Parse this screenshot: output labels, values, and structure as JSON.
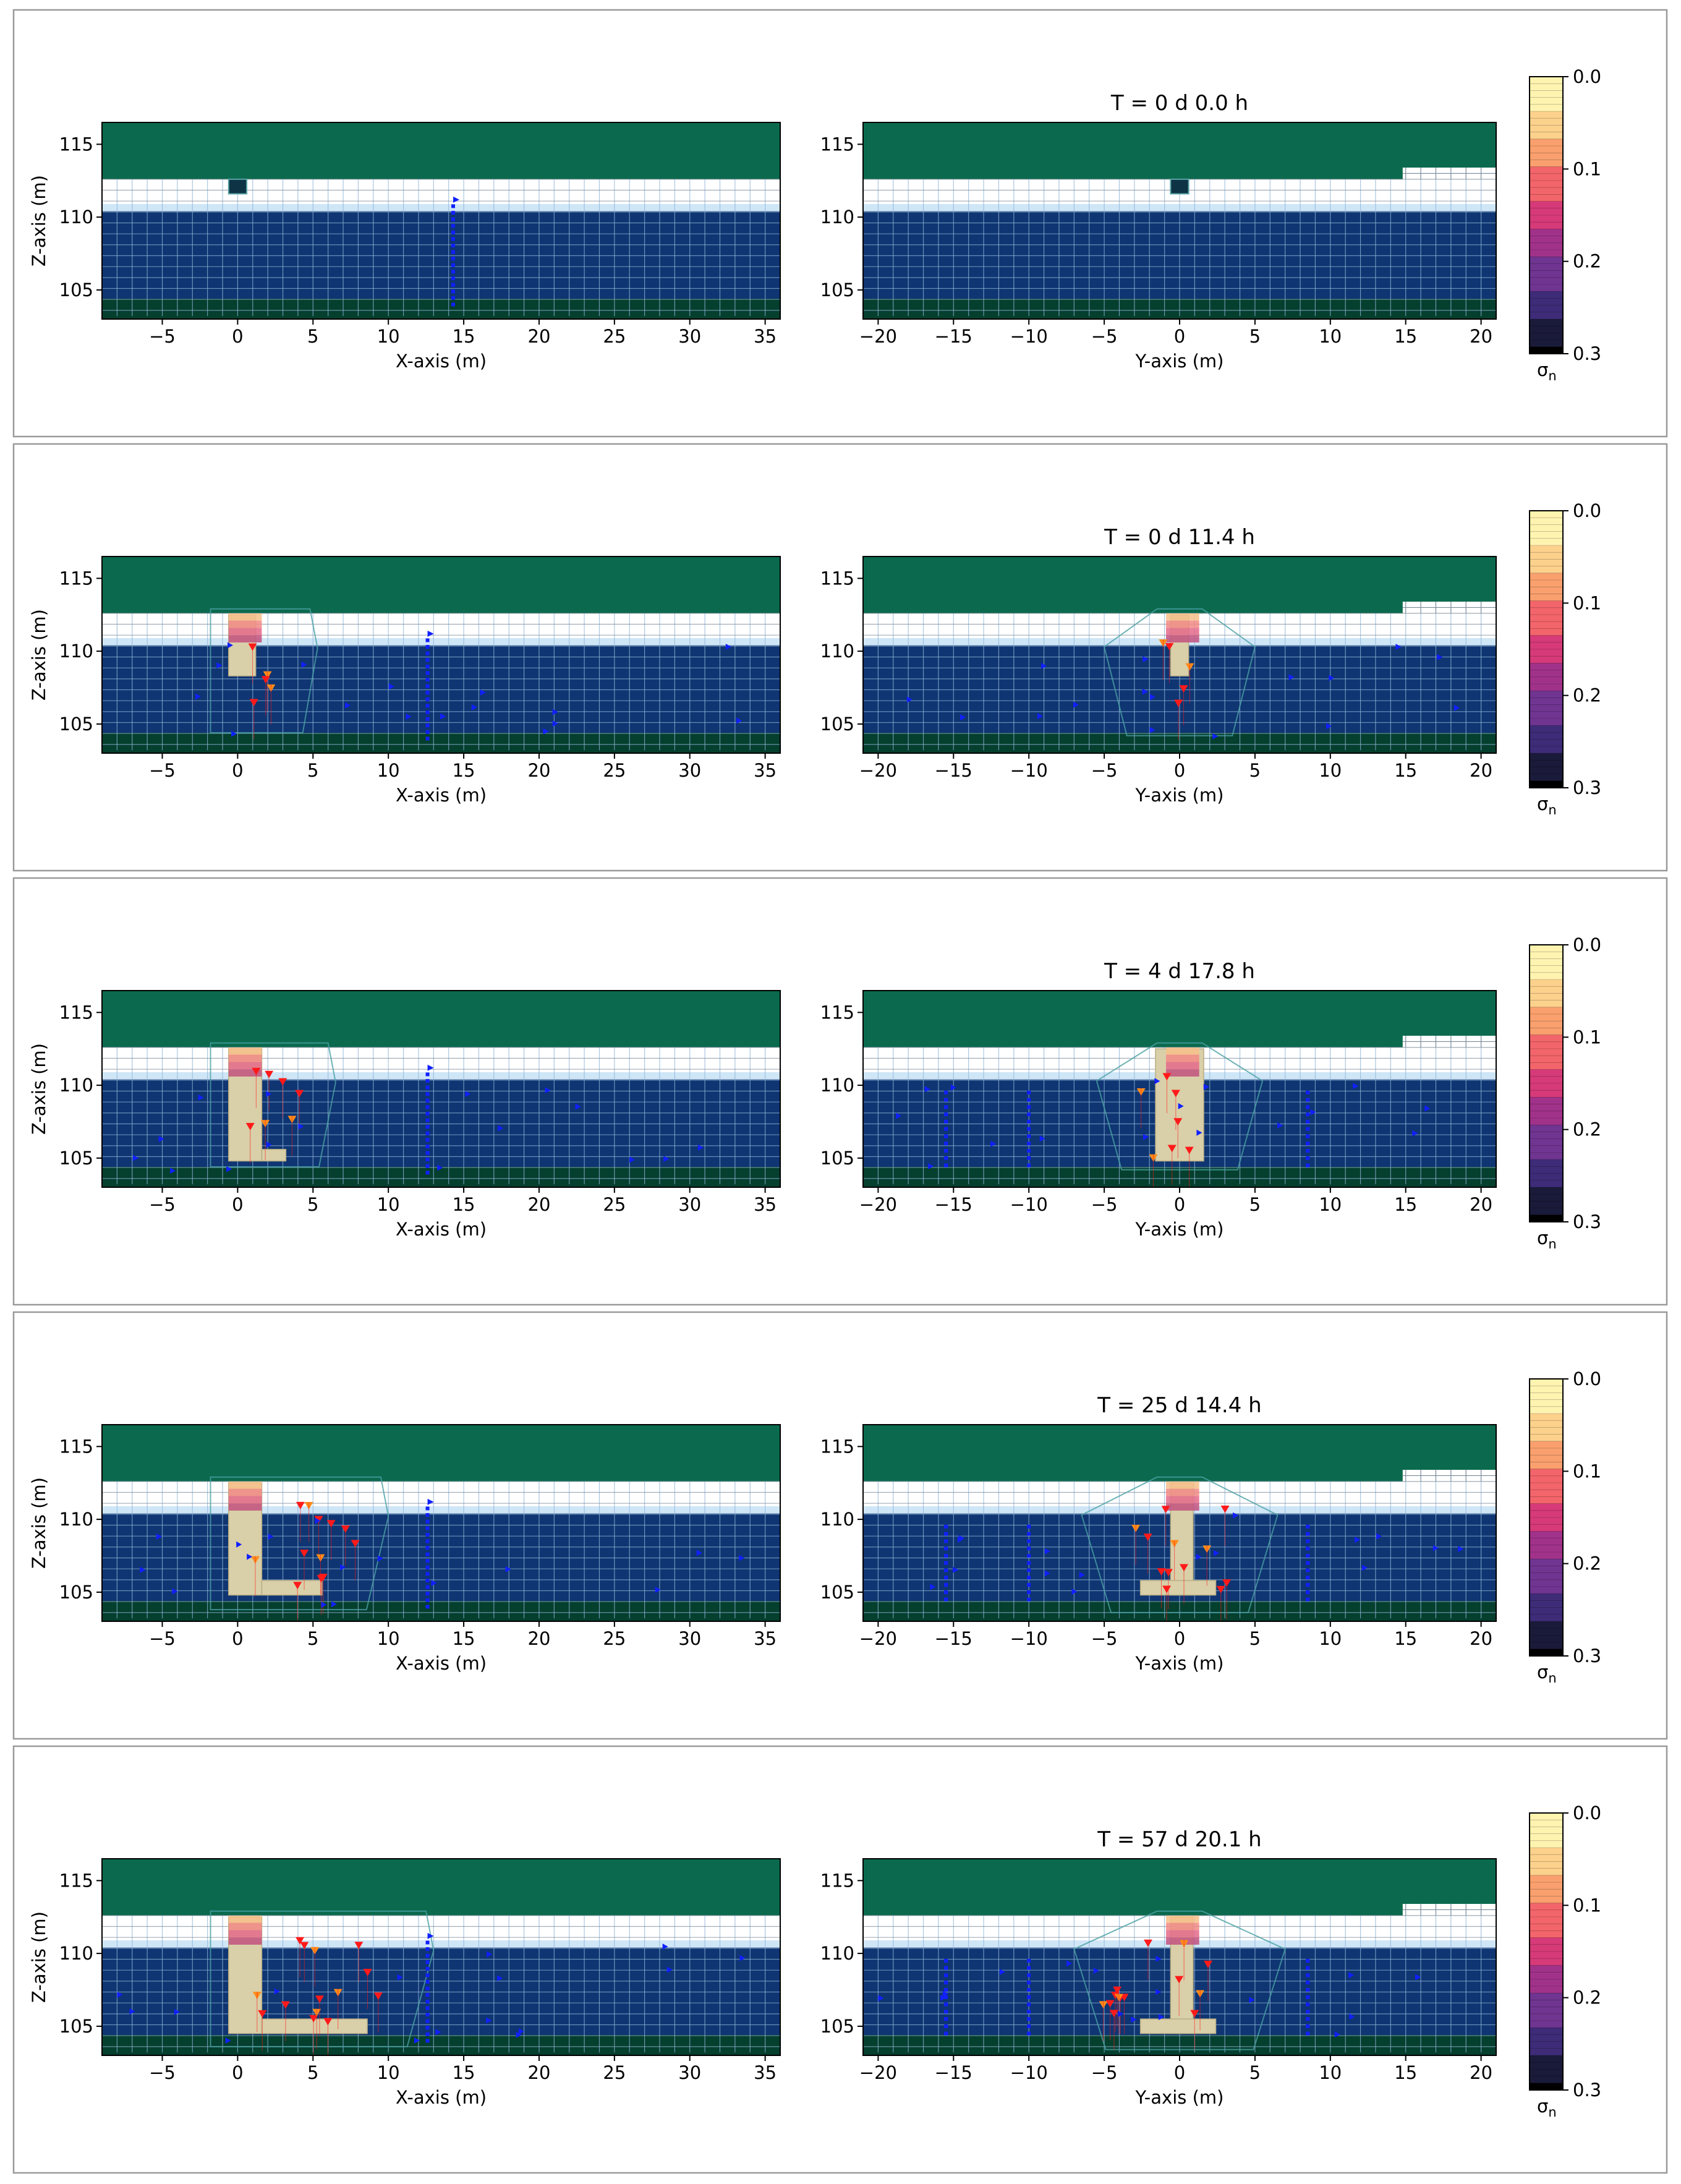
{
  "colors": {
    "top_fill": "#0b6a4e",
    "water_fill": "#0f3572",
    "bottom_fill": "#053f2e",
    "grid_line": "#8fb4d6",
    "white_grid_line": "#7a8a99",
    "water_edge": "#cfe6f7",
    "excavation": "#d9cfa8",
    "excavation_edge": "#b9ad84",
    "spot_fill": "#0d3344",
    "panel_border": "#9a9a9a",
    "blue_marker": "#1020ff",
    "red_marker": "#ff1a1a",
    "orange_marker": "#ff8c1a",
    "outline_line": "#4aa0a4",
    "colorbar_stops": [
      "#fff3b0",
      "#fcd18c",
      "#f9a06e",
      "#f2656a",
      "#d63a78",
      "#a1328a",
      "#703591",
      "#3e2c78",
      "#1a1a3a",
      "#000000"
    ]
  },
  "chart_data": [
    {
      "type": "heatmap",
      "title": "T = 0 d  0.0 h",
      "views": [
        {
          "xlabel": "X-axis (m)",
          "ylabel": "Z-axis (m)",
          "xlim": [
            -9,
            36
          ],
          "ylim": [
            103,
            116.5
          ],
          "xticks": [
            -5,
            0,
            5,
            10,
            15,
            20,
            25,
            30,
            35
          ],
          "xtick_labels": [
            "−5",
            "0",
            "5",
            "10",
            "15",
            "20",
            "25",
            "30",
            "35"
          ],
          "yticks": [
            105,
            110,
            115
          ],
          "ytick_labels": [
            "105",
            "110",
            "115"
          ]
        },
        {
          "xlabel": "Y-axis (m)",
          "ylabel": "",
          "xlim": [
            -21,
            21
          ],
          "ylim": [
            103,
            116.5
          ],
          "xticks": [
            -20,
            -15,
            -10,
            -5,
            0,
            5,
            10,
            15,
            20
          ],
          "xtick_labels": [
            "−20",
            "−15",
            "−10",
            "−5",
            "0",
            "5",
            "10",
            "15",
            "20"
          ],
          "yticks": [
            105,
            110,
            115
          ],
          "ytick_labels": [
            "105",
            "110",
            "115"
          ]
        }
      ],
      "colorbar": {
        "label": "σ_n",
        "ticks": [
          0.0,
          0.1,
          0.2,
          0.3
        ],
        "tick_labels": [
          "0.0",
          "0.1",
          "0.2",
          "0.3"
        ],
        "range": [
          0.0,
          0.3
        ]
      }
    },
    {
      "type": "heatmap",
      "title": "T = 0 d 11.4 h",
      "views": [
        {
          "xlabel": "X-axis (m)",
          "ylabel": "Z-axis (m)",
          "xlim": [
            -9,
            36
          ],
          "ylim": [
            103,
            116.5
          ],
          "xticks": [
            -5,
            0,
            5,
            10,
            15,
            20,
            25,
            30,
            35
          ],
          "xtick_labels": [
            "−5",
            "0",
            "5",
            "10",
            "15",
            "20",
            "25",
            "30",
            "35"
          ],
          "yticks": [
            105,
            110,
            115
          ],
          "ytick_labels": [
            "105",
            "110",
            "115"
          ]
        },
        {
          "xlabel": "Y-axis (m)",
          "ylabel": "",
          "xlim": [
            -21,
            21
          ],
          "ylim": [
            103,
            116.5
          ],
          "xticks": [
            -20,
            -15,
            -10,
            -5,
            0,
            5,
            10,
            15,
            20
          ],
          "xtick_labels": [
            "−20",
            "−15",
            "−10",
            "−5",
            "0",
            "5",
            "10",
            "15",
            "20"
          ],
          "yticks": [
            105,
            110,
            115
          ],
          "ytick_labels": [
            "105",
            "110",
            "115"
          ]
        }
      ],
      "colorbar": {
        "label": "σ_n",
        "ticks": [
          0.0,
          0.1,
          0.2,
          0.3
        ],
        "tick_labels": [
          "0.0",
          "0.1",
          "0.2",
          "0.3"
        ],
        "range": [
          0.0,
          0.3
        ]
      }
    },
    {
      "type": "heatmap",
      "title": "T = 4 d 17.8 h",
      "views": [
        {
          "xlabel": "X-axis (m)",
          "ylabel": "Z-axis (m)",
          "xlim": [
            -9,
            36
          ],
          "ylim": [
            103,
            116.5
          ],
          "xticks": [
            -5,
            0,
            5,
            10,
            15,
            20,
            25,
            30,
            35
          ],
          "xtick_labels": [
            "−5",
            "0",
            "5",
            "10",
            "15",
            "20",
            "25",
            "30",
            "35"
          ],
          "yticks": [
            105,
            110,
            115
          ],
          "ytick_labels": [
            "105",
            "110",
            "115"
          ]
        },
        {
          "xlabel": "Y-axis (m)",
          "ylabel": "",
          "xlim": [
            -21,
            21
          ],
          "ylim": [
            103,
            116.5
          ],
          "xticks": [
            -20,
            -15,
            -10,
            -5,
            0,
            5,
            10,
            15,
            20
          ],
          "xtick_labels": [
            "−20",
            "−15",
            "−10",
            "−5",
            "0",
            "5",
            "10",
            "15",
            "20"
          ],
          "yticks": [
            105,
            110,
            115
          ],
          "ytick_labels": [
            "105",
            "110",
            "115"
          ]
        }
      ],
      "colorbar": {
        "label": "σ_n",
        "ticks": [
          0.0,
          0.1,
          0.2,
          0.3
        ],
        "tick_labels": [
          "0.0",
          "0.1",
          "0.2",
          "0.3"
        ],
        "range": [
          0.0,
          0.3
        ]
      }
    },
    {
      "type": "heatmap",
      "title": "T = 25 d 14.4 h",
      "views": [
        {
          "xlabel": "X-axis (m)",
          "ylabel": "Z-axis (m)",
          "xlim": [
            -9,
            36
          ],
          "ylim": [
            103,
            116.5
          ],
          "xticks": [
            -5,
            0,
            5,
            10,
            15,
            20,
            25,
            30,
            35
          ],
          "xtick_labels": [
            "−5",
            "0",
            "5",
            "10",
            "15",
            "20",
            "25",
            "30",
            "35"
          ],
          "yticks": [
            105,
            110,
            115
          ],
          "ytick_labels": [
            "105",
            "110",
            "115"
          ]
        },
        {
          "xlabel": "Y-axis (m)",
          "ylabel": "",
          "xlim": [
            -21,
            21
          ],
          "ylim": [
            103,
            116.5
          ],
          "xticks": [
            -20,
            -15,
            -10,
            -5,
            0,
            5,
            10,
            15,
            20
          ],
          "xtick_labels": [
            "−20",
            "−15",
            "−10",
            "−5",
            "0",
            "5",
            "10",
            "15",
            "20"
          ],
          "yticks": [
            105,
            110,
            115
          ],
          "ytick_labels": [
            "105",
            "110",
            "115"
          ]
        }
      ],
      "colorbar": {
        "label": "σ_n",
        "ticks": [
          0.0,
          0.1,
          0.2,
          0.3
        ],
        "tick_labels": [
          "0.0",
          "0.1",
          "0.2",
          "0.3"
        ],
        "range": [
          0.0,
          0.3
        ]
      }
    },
    {
      "type": "heatmap",
      "title": "T = 57 d 20.1 h",
      "views": [
        {
          "xlabel": "X-axis (m)",
          "ylabel": "Z-axis (m)",
          "xlim": [
            -9,
            36
          ],
          "ylim": [
            103,
            116.5
          ],
          "xticks": [
            -5,
            0,
            5,
            10,
            15,
            20,
            25,
            30,
            35
          ],
          "xtick_labels": [
            "−5",
            "0",
            "5",
            "10",
            "15",
            "20",
            "25",
            "30",
            "35"
          ],
          "yticks": [
            105,
            110,
            115
          ],
          "ytick_labels": [
            "105",
            "110",
            "115"
          ]
        },
        {
          "xlabel": "Y-axis (m)",
          "ylabel": "",
          "xlim": [
            -21,
            21
          ],
          "ylim": [
            103,
            116.5
          ],
          "xticks": [
            -20,
            -15,
            -10,
            -5,
            0,
            5,
            10,
            15,
            20
          ],
          "xtick_labels": [
            "−20",
            "−15",
            "−10",
            "−5",
            "0",
            "5",
            "10",
            "15",
            "20"
          ],
          "yticks": [
            105,
            110,
            115
          ],
          "ytick_labels": [
            "105",
            "110",
            "115"
          ]
        }
      ],
      "colorbar": {
        "label": "σ_n",
        "ticks": [
          0.0,
          0.1,
          0.2,
          0.3
        ],
        "tick_labels": [
          "0.0",
          "0.1",
          "0.2",
          "0.3"
        ],
        "range": [
          0.0,
          0.3
        ]
      }
    }
  ]
}
